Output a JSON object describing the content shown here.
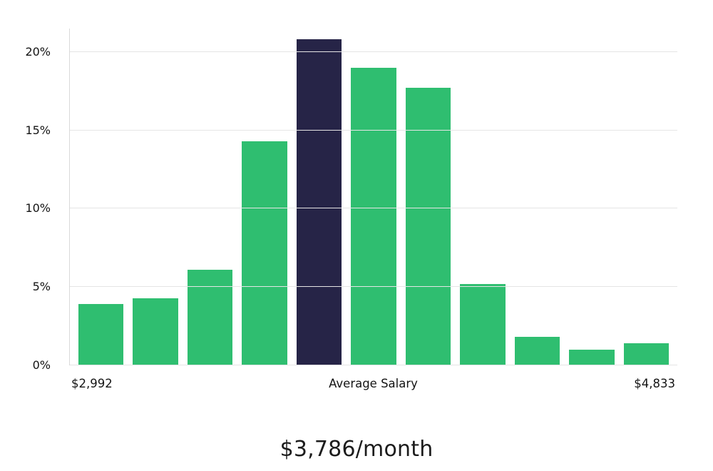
{
  "chart_data": {
    "type": "bar",
    "title": "$3,786/month",
    "values": [
      3.9,
      4.3,
      6.1,
      14.3,
      20.8,
      19.0,
      17.7,
      5.2,
      1.8,
      1.0,
      1.4
    ],
    "highlight_index": 4,
    "bar_color": "#2fbe70",
    "highlight_color": "#262447",
    "ylim": [
      0,
      21.5
    ],
    "ytick_values": [
      0,
      5,
      10,
      15,
      20
    ],
    "yticks": [
      "0%",
      "5%",
      "10%",
      "15%",
      "20%"
    ],
    "x_axis": {
      "left": "$2,992",
      "center": "Average Salary",
      "right": "$4,833"
    },
    "grid": true,
    "legend": "none"
  }
}
